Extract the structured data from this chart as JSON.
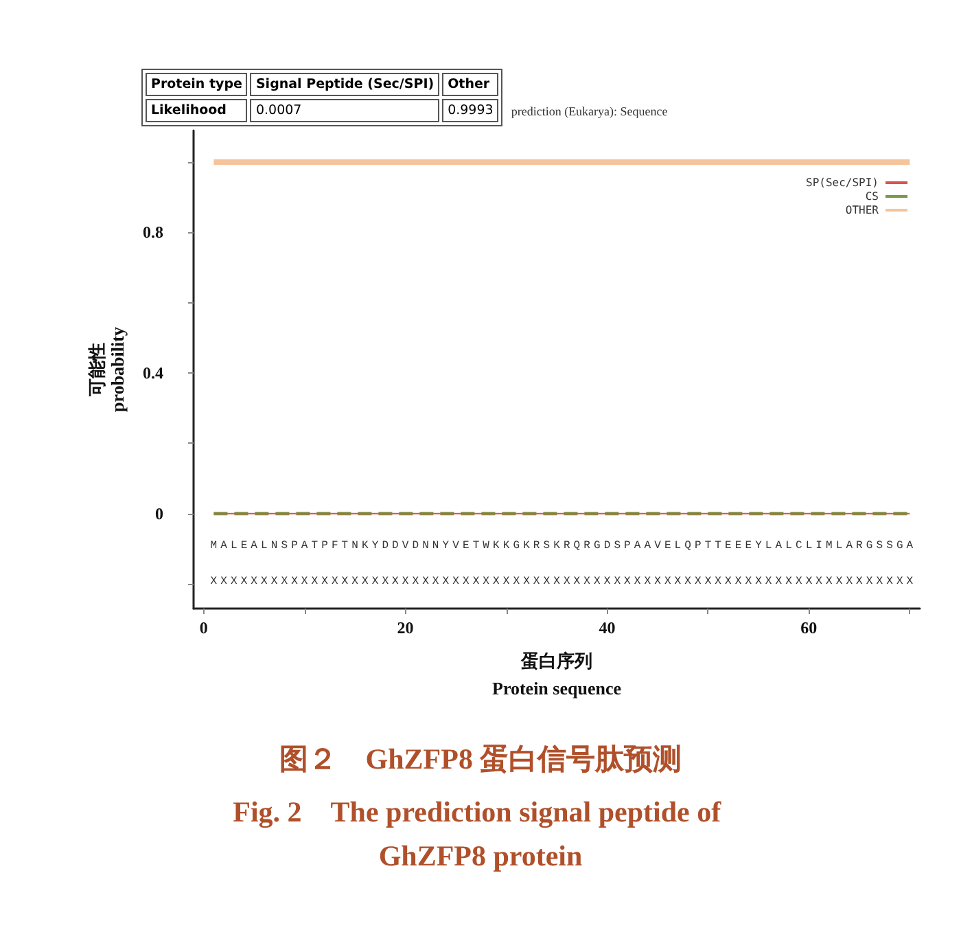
{
  "chart_data": [
    {
      "type": "other",
      "annotations": [
        "Protein type",
        "Signal Peptide (Sec/SPI)",
        "Other",
        "Likelihood",
        "0.0007",
        "0.9993"
      ]
    },
    {
      "type": "line",
      "title": "图２　GhZFP8 蛋白信号肽预测",
      "subtitle": "Fig. 2　The prediction signal peptide of GhZFP8 protein",
      "xlabel": "蛋白序列\nProtein sequence",
      "ylabel": "可能性\nprobability",
      "x": [
        1,
        70
      ],
      "series": [
        {
          "name": "SP(Sec/SPI)",
          "color": "#d9534f",
          "values": [
            0,
            0
          ],
          "line_style": "solid"
        },
        {
          "name": "CS",
          "color": "#7a9a4a",
          "values": [
            0,
            0
          ],
          "line_style": "dashed"
        },
        {
          "name": "OTHER",
          "color": "#f5c49a",
          "values": [
            1,
            1
          ],
          "line_style": "solid"
        }
      ],
      "xlim": [
        -1,
        71
      ],
      "xticks": [
        0,
        {
          "value": 10,
          "label": null
        },
        20,
        {
          "value": 30,
          "label": null
        },
        40,
        {
          "value": 50,
          "label": null
        },
        60,
        {
          "value": 70,
          "label": null
        }
      ],
      "ylim": [
        -0.27,
        1.09
      ],
      "yticks": [
        {
          "value": -0.2,
          "label": null
        },
        0,
        {
          "value": 0.2,
          "label": null
        },
        0.4,
        {
          "value": 0.6,
          "label": null
        },
        0.8,
        {
          "value": 1.0,
          "label": null
        }
      ],
      "annotations": [
        "prediction (Eukarya): Sequence",
        "MALEALNSPATPFTNKYDDVDNNYVETWKKGKRSKRQRGDSPAAVELQPTTEEEYLALCLIMLARGSSGA",
        "XXXXXXXXXXXXXXXXXXXXXXXXXXXXXXXXXXXXXXXXXXXXXXXXXXXXXXXXXXXXXXXXXXXXXX"
      ],
      "legend": "top right",
      "marker": "none",
      "grid": false
    }
  ]
}
